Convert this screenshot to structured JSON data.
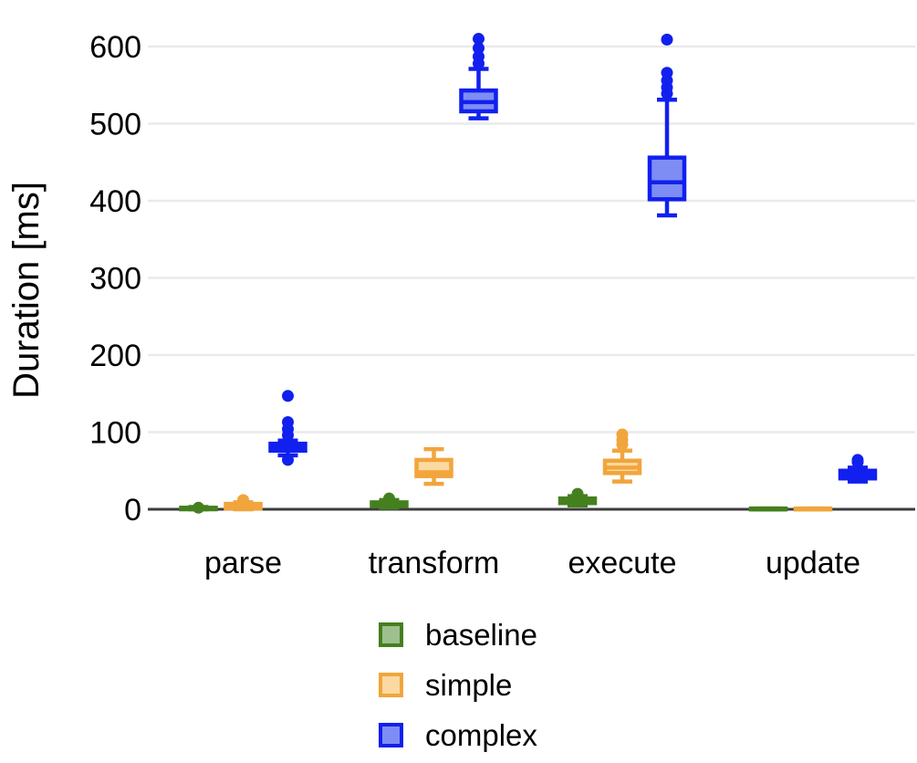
{
  "chart_data": {
    "type": "boxplot",
    "title": "",
    "xlabel": "",
    "ylabel": "Duration [ms]",
    "categories": [
      "parse",
      "transform",
      "execute",
      "update"
    ],
    "yticks": [
      0,
      100,
      200,
      300,
      400,
      500,
      600
    ],
    "ylim": [
      0,
      620
    ],
    "grid": "horizontal",
    "gridline_color": "#eaeaea",
    "axis_line_color": "#3c3c3c",
    "text_color": "#000000",
    "legend_position": "bottom",
    "series": [
      {
        "name": "baseline",
        "stroke": "#45801f",
        "fill": "#9ec08f",
        "boxes": [
          {
            "low": 0,
            "q1": 0,
            "median": 1,
            "q3": 2,
            "high": 3,
            "outliers": [
              2
            ]
          },
          {
            "low": 2,
            "q1": 4,
            "median": 6,
            "q3": 9,
            "high": 12,
            "outliers": [
              14
            ]
          },
          {
            "low": 5,
            "q1": 8,
            "median": 11,
            "q3": 14,
            "high": 17,
            "outliers": [
              20
            ]
          },
          {
            "low": 0,
            "q1": 0,
            "median": 0,
            "q3": 1,
            "high": 1,
            "outliers": []
          }
        ]
      },
      {
        "name": "simple",
        "stroke": "#f1a53c",
        "fill": "#fad9a2",
        "boxes": [
          {
            "low": 0,
            "q1": 1,
            "median": 3,
            "q3": 7,
            "high": 9,
            "outliers": [
              12
            ]
          },
          {
            "low": 33,
            "q1": 43,
            "median": 48,
            "q3": 64,
            "high": 78,
            "outliers": []
          },
          {
            "low": 36,
            "q1": 47,
            "median": 54,
            "q3": 63,
            "high": 76,
            "outliers": [
              84,
              90,
              97
            ]
          },
          {
            "low": 0,
            "q1": 0,
            "median": 0,
            "q3": 1,
            "high": 1,
            "outliers": []
          }
        ]
      },
      {
        "name": "complex",
        "stroke": "#1120ee",
        "fill": "#7e8df3",
        "boxes": [
          {
            "low": 70,
            "q1": 76,
            "median": 81,
            "q3": 85,
            "high": 89,
            "outliers": [
              64,
              96,
              104,
              113,
              147
            ]
          },
          {
            "low": 507,
            "q1": 516,
            "median": 528,
            "q3": 543,
            "high": 571,
            "outliers": [
              578,
              587,
              598,
              610
            ]
          },
          {
            "low": 381,
            "q1": 402,
            "median": 424,
            "q3": 456,
            "high": 531,
            "outliers": [
              539,
              547,
              556,
              566,
              609
            ]
          },
          {
            "low": 36,
            "q1": 40,
            "median": 45,
            "q3": 50,
            "high": 54,
            "outliers": [
              61,
              64
            ]
          }
        ]
      }
    ]
  }
}
